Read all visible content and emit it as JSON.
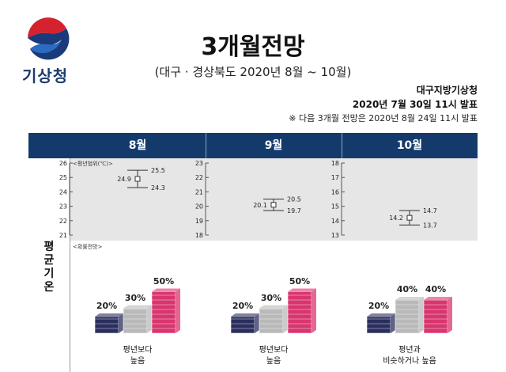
{
  "header": {
    "logo_text": "기상청",
    "title": "3개월전망",
    "subtitle": "(대구 · 경상북도 2020년 8월 ~ 10월)",
    "issuer": "대구지방기상청",
    "issued": "2020년 7월 30일 11시 발표",
    "notice": "※ 다음 3개월 전망은 2020년 8월 24일 11시 발표"
  },
  "table": {
    "months": [
      "8월",
      "9월",
      "10월"
    ],
    "row_label": "평균기온",
    "range_label": "<평년범위(℃)>",
    "prob_label": "<확률전망>"
  },
  "colors": {
    "header_bg": "#143a6b",
    "below": "#2b2f5e",
    "normal": "#b9b9b9",
    "above": "#d9356f"
  },
  "chart_data": {
    "type": "range_and_probability",
    "panels": [
      {
        "month": "8월",
        "axis_ticks": [
          26,
          25,
          24,
          23,
          22,
          21
        ],
        "ylim": [
          21,
          26
        ],
        "normal_range": {
          "low": 24.3,
          "mid": 24.9,
          "high": 25.5
        },
        "labels": {
          "high": "25.5",
          "mid": "24.9",
          "low": "24.3"
        },
        "probabilities": {
          "below": 20,
          "normal": 30,
          "above": 50
        },
        "prob_labels": [
          "20%",
          "30%",
          "50%"
        ],
        "category": "평년보다\n높음"
      },
      {
        "month": "9월",
        "axis_ticks": [
          23,
          22,
          21,
          20,
          19,
          18
        ],
        "ylim": [
          18,
          23
        ],
        "normal_range": {
          "low": 19.7,
          "mid": 20.1,
          "high": 20.5
        },
        "labels": {
          "high": "20.5",
          "mid": "20.1",
          "low": "19.7"
        },
        "probabilities": {
          "below": 20,
          "normal": 30,
          "above": 50
        },
        "prob_labels": [
          "20%",
          "30%",
          "50%"
        ],
        "category": "평년보다\n높음"
      },
      {
        "month": "10월",
        "axis_ticks": [
          18,
          17,
          16,
          15,
          14,
          13
        ],
        "ylim": [
          13,
          18
        ],
        "normal_range": {
          "low": 13.7,
          "mid": 14.2,
          "high": 14.7
        },
        "labels": {
          "high": "14.7",
          "mid": "14.2",
          "low": "13.7"
        },
        "probabilities": {
          "below": 20,
          "normal": 40,
          "above": 40
        },
        "prob_labels": [
          "20%",
          "40%",
          "40%"
        ],
        "category": "평년과\n비슷하거나 높음"
      }
    ]
  }
}
